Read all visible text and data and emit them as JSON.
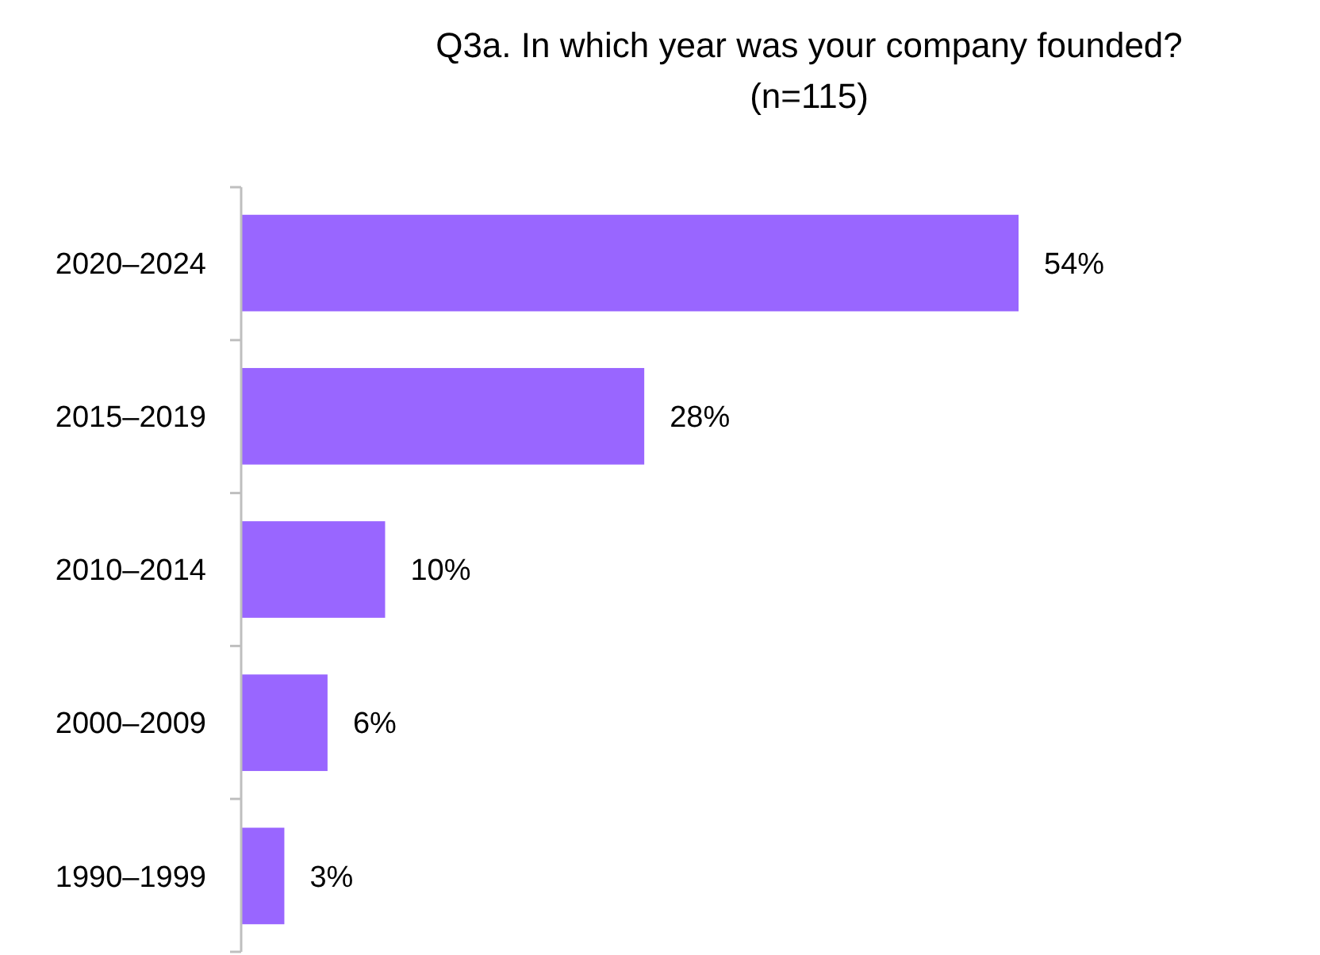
{
  "chart_data": {
    "type": "bar",
    "orientation": "horizontal",
    "title": "Q3a. In which year was your company founded?",
    "subtitle": "(n=115)",
    "categories": [
      "2020–2024",
      "2015–2019",
      "2010–2014",
      "2000–2009",
      "1990–1999"
    ],
    "values": [
      54,
      28,
      10,
      6,
      3
    ],
    "value_labels": [
      "54%",
      "28%",
      "10%",
      "6%",
      "3%"
    ],
    "color": "#9966ff"
  }
}
